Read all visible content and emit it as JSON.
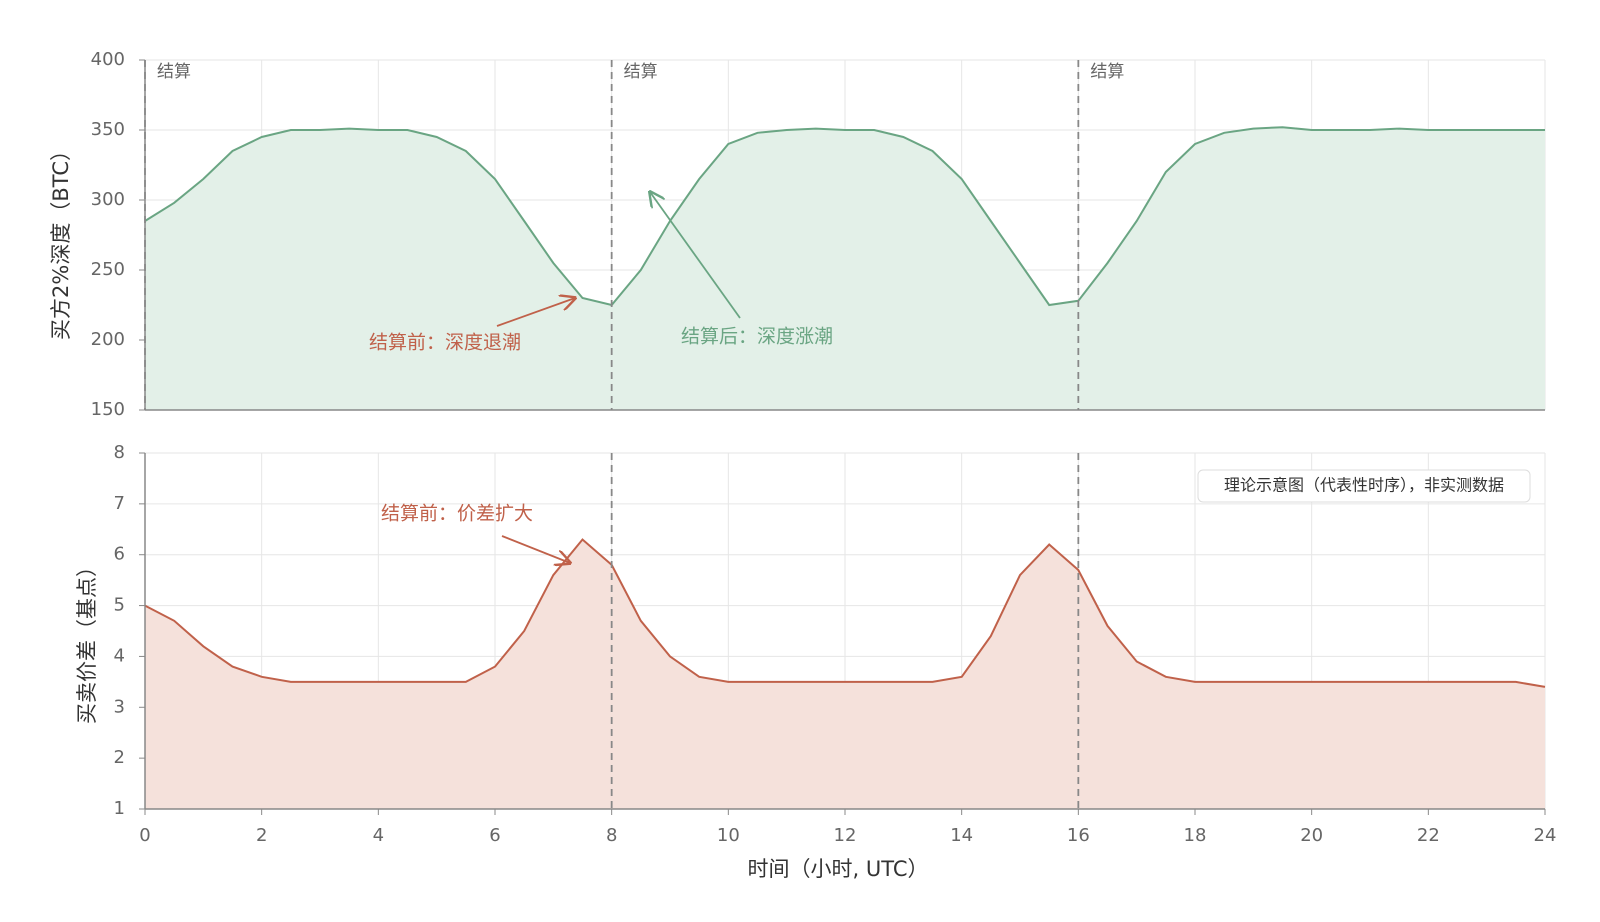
{
  "chart_data": [
    {
      "type": "area",
      "ylabel": "买方2%深度（BTC）",
      "color": "#6aa583",
      "fill": "#e3f0e8",
      "x": [
        0,
        0.5,
        1,
        1.5,
        2,
        2.5,
        3,
        3.5,
        4,
        4.5,
        5,
        5.5,
        6,
        6.5,
        7,
        7.5,
        8,
        8.5,
        9,
        9.5,
        10,
        10.5,
        11,
        11.5,
        12,
        12.5,
        13,
        13.5,
        14,
        14.5,
        15,
        15.5,
        16,
        16.5,
        17,
        17.5,
        18,
        18.5,
        19,
        19.5,
        20,
        20.5,
        21,
        21.5,
        22,
        22.5,
        23,
        23.5,
        24
      ],
      "values": [
        285,
        298,
        315,
        335,
        345,
        350,
        350,
        351,
        350,
        350,
        345,
        335,
        315,
        285,
        255,
        230,
        225,
        250,
        285,
        315,
        340,
        348,
        350,
        351,
        350,
        350,
        345,
        335,
        315,
        285,
        255,
        225,
        228,
        255,
        285,
        320,
        340,
        348,
        351,
        352,
        350,
        350,
        350,
        351,
        350,
        350,
        350,
        350,
        350
      ],
      "xlim": [
        0,
        24
      ],
      "ylim": [
        150,
        400
      ],
      "yticks": [
        150,
        200,
        250,
        300,
        350,
        400
      ],
      "grid": true,
      "settlements": [
        0,
        8,
        16
      ],
      "settlement_label": "结算",
      "annotations": [
        {
          "text": "结算前：深度退潮",
          "color": "#c0614a"
        },
        {
          "text": "结算后：深度涨潮",
          "color": "#6aa583"
        }
      ]
    },
    {
      "type": "area",
      "ylabel": "买卖价差（基点）",
      "xlabel": "时间（小时, UTC）",
      "color": "#c0614a",
      "fill": "#f5e1db",
      "x": [
        0,
        0.5,
        1,
        1.5,
        2,
        2.5,
        3,
        3.5,
        4,
        4.5,
        5,
        5.5,
        6,
        6.5,
        7,
        7.5,
        8,
        8.5,
        9,
        9.5,
        10,
        10.5,
        11,
        11.5,
        12,
        12.5,
        13,
        13.5,
        14,
        14.5,
        15,
        15.5,
        16,
        16.5,
        17,
        17.5,
        18,
        18.5,
        19,
        19.5,
        20,
        20.5,
        21,
        21.5,
        22,
        22.5,
        23,
        23.5,
        24
      ],
      "values": [
        5.0,
        4.7,
        4.2,
        3.8,
        3.6,
        3.5,
        3.5,
        3.5,
        3.5,
        3.5,
        3.5,
        3.5,
        3.8,
        4.5,
        5.6,
        6.3,
        5.8,
        4.7,
        4.0,
        3.6,
        3.5,
        3.5,
        3.5,
        3.5,
        3.5,
        3.5,
        3.5,
        3.5,
        3.6,
        4.4,
        5.6,
        6.2,
        5.7,
        4.6,
        3.9,
        3.6,
        3.5,
        3.5,
        3.5,
        3.5,
        3.5,
        3.5,
        3.5,
        3.5,
        3.5,
        3.5,
        3.5,
        3.5,
        3.4
      ],
      "xlim": [
        0,
        24
      ],
      "xticks": [
        0,
        2,
        4,
        6,
        8,
        10,
        12,
        14,
        16,
        18,
        20,
        22,
        24
      ],
      "ylim": [
        1,
        8
      ],
      "yticks": [
        1,
        2,
        3,
        4,
        5,
        6,
        7,
        8
      ],
      "grid": true,
      "settlements": [
        8,
        16
      ],
      "annotations": [
        {
          "text": "结算前：价差扩大",
          "color": "#c0614a"
        }
      ],
      "note": "理论示意图（代表性时序），非实测数据"
    }
  ]
}
